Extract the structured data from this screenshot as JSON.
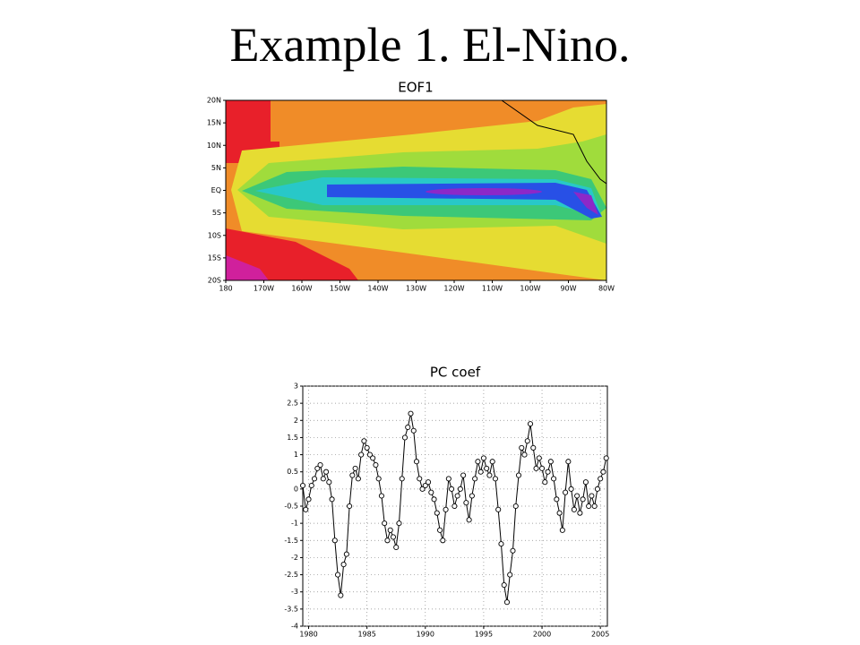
{
  "title": "Example 1. El-Nino.",
  "chart_data": [
    {
      "type": "contour",
      "title": "EOF1",
      "xlim": [
        180,
        280
      ],
      "xticks": [
        {
          "value": 180,
          "label": "180"
        },
        {
          "value": 190,
          "label": "170W"
        },
        {
          "value": 200,
          "label": "160W"
        },
        {
          "value": 210,
          "label": "150W"
        },
        {
          "value": 220,
          "label": "140W"
        },
        {
          "value": 230,
          "label": "130W"
        },
        {
          "value": 240,
          "label": "120W"
        },
        {
          "value": 250,
          "label": "110W"
        },
        {
          "value": 260,
          "label": "100W"
        },
        {
          "value": 270,
          "label": "90W"
        },
        {
          "value": 280,
          "label": "80W"
        }
      ],
      "ylim": [
        -20,
        20
      ],
      "yticks": [
        {
          "value": -20,
          "label": "20S"
        },
        {
          "value": -15,
          "label": "15S"
        },
        {
          "value": -10,
          "label": "10S"
        },
        {
          "value": -5,
          "label": "5S"
        },
        {
          "value": 0,
          "label": "EQ"
        },
        {
          "value": 5,
          "label": "5N"
        },
        {
          "value": 10,
          "label": "10N"
        },
        {
          "value": 15,
          "label": "15N"
        },
        {
          "value": 20,
          "label": "20N"
        }
      ]
    },
    {
      "type": "line",
      "title": "PC coef",
      "color": "#000000",
      "markers": true,
      "grid": true,
      "x": [
        1979.5,
        1979.75,
        1980,
        1980.25,
        1980.5,
        1980.75,
        1981,
        1981.25,
        1981.5,
        1981.75,
        1982,
        1982.25,
        1982.5,
        1982.75,
        1983,
        1983.25,
        1983.5,
        1983.75,
        1984,
        1984.25,
        1984.5,
        1984.75,
        1985,
        1985.25,
        1985.5,
        1985.75,
        1986,
        1986.25,
        1986.5,
        1986.75,
        1987,
        1987.25,
        1987.5,
        1987.75,
        1988,
        1988.25,
        1988.5,
        1988.75,
        1989,
        1989.25,
        1989.5,
        1989.75,
        1990,
        1990.25,
        1990.5,
        1990.75,
        1991,
        1991.25,
        1991.5,
        1991.75,
        1992,
        1992.25,
        1992.5,
        1992.75,
        1993,
        1993.25,
        1993.5,
        1993.75,
        1994,
        1994.25,
        1994.5,
        1994.75,
        1995,
        1995.25,
        1995.5,
        1995.75,
        1996,
        1996.25,
        1996.5,
        1996.75,
        1997,
        1997.25,
        1997.5,
        1997.75,
        1998,
        1998.25,
        1998.5,
        1998.75,
        1999,
        1999.25,
        1999.5,
        1999.75,
        2000,
        2000.25,
        2000.5,
        2000.75,
        2001,
        2001.25,
        2001.5,
        2001.75,
        2002,
        2002.25,
        2002.5,
        2002.75,
        2003,
        2003.25,
        2003.5,
        2003.75,
        2004,
        2004.25,
        2004.5,
        2004.75,
        2005,
        2005.25,
        2005.5
      ],
      "values": [
        0.1,
        -0.6,
        -0.3,
        0.1,
        0.3,
        0.6,
        0.7,
        0.3,
        0.5,
        0.2,
        -0.3,
        -1.5,
        -2.5,
        -3.1,
        -2.2,
        -1.9,
        -0.5,
        0.4,
        0.6,
        0.3,
        1.0,
        1.4,
        1.2,
        1.0,
        0.9,
        0.7,
        0.3,
        -0.2,
        -1.0,
        -1.5,
        -1.2,
        -1.4,
        -1.7,
        -1.0,
        0.3,
        1.5,
        1.8,
        2.2,
        1.7,
        0.8,
        0.3,
        0.0,
        0.1,
        0.2,
        -0.1,
        -0.3,
        -0.7,
        -1.2,
        -1.5,
        -0.6,
        0.3,
        0.0,
        -0.5,
        -0.2,
        0.0,
        0.4,
        -0.4,
        -0.9,
        -0.2,
        0.3,
        0.8,
        0.5,
        0.9,
        0.6,
        0.4,
        0.8,
        0.3,
        -0.6,
        -1.6,
        -2.8,
        -3.3,
        -2.5,
        -1.8,
        -0.5,
        0.4,
        1.2,
        1.0,
        1.4,
        1.9,
        1.2,
        0.6,
        0.9,
        0.6,
        0.2,
        0.5,
        0.8,
        0.3,
        -0.3,
        -0.7,
        -1.2,
        -0.1,
        0.8,
        0.0,
        -0.6,
        -0.2,
        -0.7,
        -0.3,
        0.2,
        -0.5,
        -0.2,
        -0.5,
        0.0,
        0.3,
        0.5,
        0.9
      ],
      "xlim": [
        1979.5,
        2005.6
      ],
      "xticks": [
        1980,
        1985,
        1990,
        1995,
        2000,
        2005
      ],
      "ylim": [
        -4,
        3
      ],
      "yticks": [
        -4,
        -3.5,
        -3,
        -2.5,
        -2,
        -1.5,
        -1,
        -0.5,
        0,
        0.5,
        1,
        1.5,
        2,
        2.5,
        3
      ]
    }
  ]
}
